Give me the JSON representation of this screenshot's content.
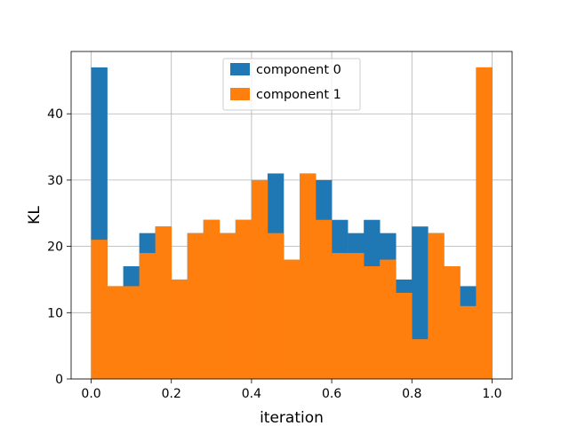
{
  "chart_data": {
    "type": "bar",
    "xlabel": "iteration",
    "ylabel": "KL",
    "xlim": [
      -0.05,
      1.05
    ],
    "ylim": [
      0,
      49.4
    ],
    "xticks": [
      0.0,
      0.2,
      0.4,
      0.6,
      0.8,
      1.0
    ],
    "xtick_labels": [
      "0.0",
      "0.2",
      "0.4",
      "0.6",
      "0.8",
      "1.0"
    ],
    "yticks": [
      0,
      10,
      20,
      30,
      40
    ],
    "ytick_labels": [
      "0",
      "10",
      "20",
      "30",
      "40"
    ],
    "grid": true,
    "legend_position": "top-center",
    "bin_edges": [
      0.0,
      0.04,
      0.08,
      0.12,
      0.16,
      0.2,
      0.24,
      0.28,
      0.32,
      0.36,
      0.4,
      0.44,
      0.48,
      0.52,
      0.56,
      0.6,
      0.64,
      0.68,
      0.72,
      0.76,
      0.8,
      0.84,
      0.88,
      0.92,
      0.96,
      1.0
    ],
    "series": [
      {
        "name": "component 0",
        "color": "#1f77b4",
        "values": [
          47,
          14,
          17,
          22,
          23,
          15,
          22,
          24,
          22,
          24,
          30,
          31,
          18,
          31,
          30,
          24,
          22,
          24,
          22,
          15,
          23,
          22,
          17,
          14,
          47
        ]
      },
      {
        "name": "component 1",
        "color": "#ff7f0e",
        "values": [
          21,
          14,
          14,
          19,
          23,
          15,
          22,
          24,
          22,
          24,
          30,
          22,
          18,
          31,
          24,
          19,
          19,
          17,
          18,
          13,
          6,
          22,
          17,
          11,
          47
        ]
      }
    ]
  }
}
